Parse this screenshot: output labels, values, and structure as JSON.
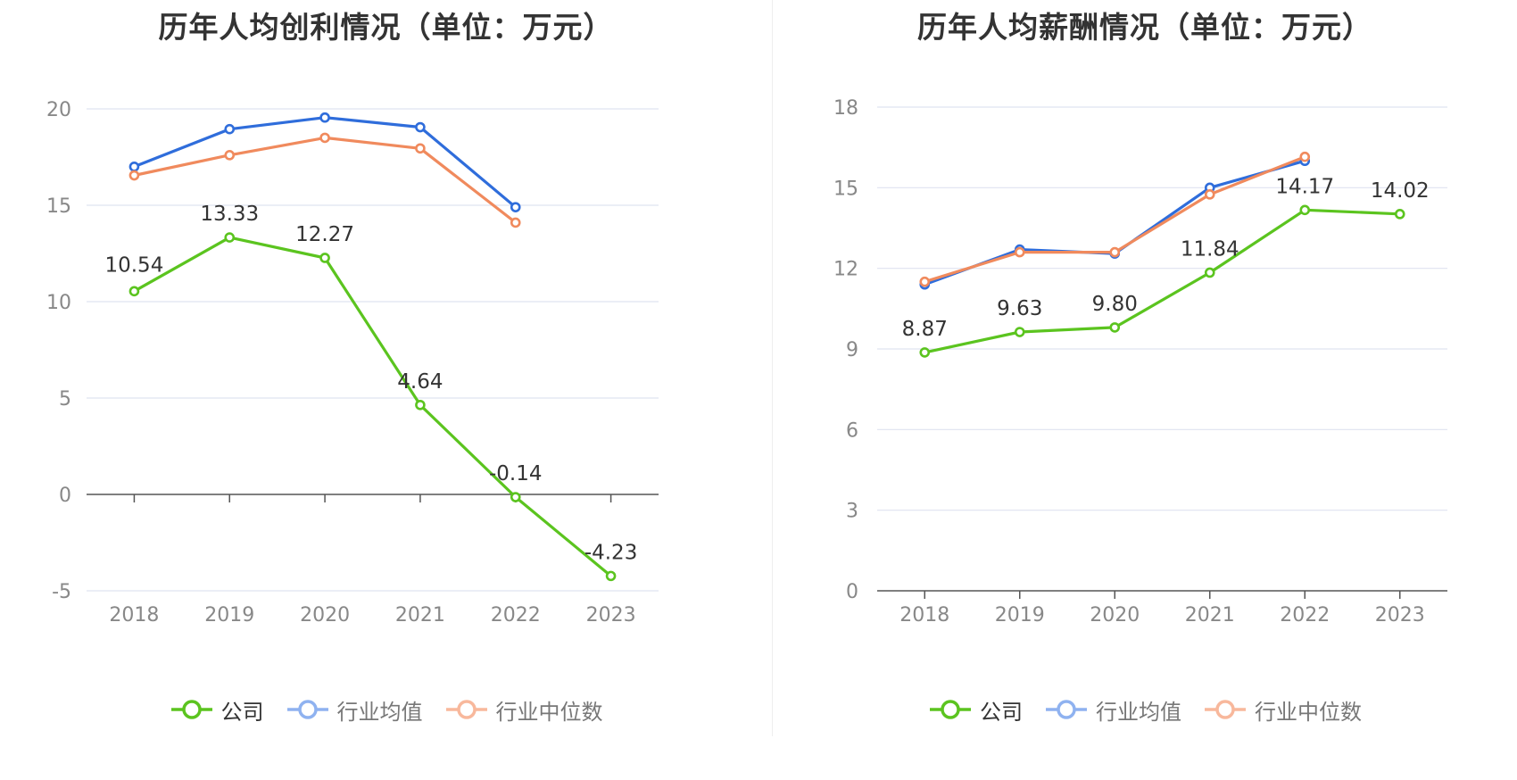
{
  "chart_data": [
    {
      "type": "line",
      "title": "历年人均创利情况（单位：万元）",
      "categories": [
        "2018",
        "2019",
        "2020",
        "2021",
        "2022",
        "2023"
      ],
      "ylim": [
        -5,
        20
      ],
      "yticks": [
        -5,
        0,
        5,
        10,
        15,
        20
      ],
      "grid": true,
      "legend_position": "bottom",
      "series": [
        {
          "name": "公司",
          "color": "#5bc41f",
          "values": [
            10.54,
            13.33,
            12.27,
            4.64,
            -0.14,
            -4.23
          ],
          "labels": [
            "10.54",
            "13.33",
            "12.27",
            "4.64",
            "-0.14",
            "-4.23"
          ]
        },
        {
          "name": "行业均值",
          "color": "#2f6ddb",
          "values": [
            17.0,
            18.95,
            19.55,
            19.05,
            14.9,
            null
          ]
        },
        {
          "name": "行业中位数",
          "color": "#f08a5d",
          "values": [
            16.55,
            17.6,
            18.5,
            17.95,
            14.1,
            null
          ]
        }
      ]
    },
    {
      "type": "line",
      "title": "历年人均薪酬情况（单位：万元）",
      "categories": [
        "2018",
        "2019",
        "2020",
        "2021",
        "2022",
        "2023"
      ],
      "ylim": [
        0,
        18
      ],
      "yticks": [
        0,
        3,
        6,
        9,
        12,
        15,
        18
      ],
      "grid": true,
      "legend_position": "bottom",
      "series": [
        {
          "name": "公司",
          "color": "#5bc41f",
          "values": [
            8.87,
            9.63,
            9.8,
            11.84,
            14.17,
            14.02
          ],
          "labels": [
            "8.87",
            "9.63",
            "9.80",
            "11.84",
            "14.17",
            "14.02"
          ]
        },
        {
          "name": "行业均值",
          "color": "#2f6ddb",
          "values": [
            11.4,
            12.7,
            12.55,
            15.0,
            16.0,
            null
          ]
        },
        {
          "name": "行业中位数",
          "color": "#f08a5d",
          "values": [
            11.5,
            12.6,
            12.6,
            14.75,
            16.15,
            null
          ]
        }
      ]
    }
  ],
  "legend": {
    "items": [
      {
        "label": "公司",
        "line_color": "#5bc41f",
        "dot_fill": "#ffffff",
        "active": true
      },
      {
        "label": "行业均值",
        "line_color": "#8fb2f0",
        "dot_fill": "#ffffff",
        "active": false
      },
      {
        "label": "行业中位数",
        "line_color": "#f8b89c",
        "dot_fill": "#ffffff",
        "active": false
      }
    ]
  }
}
